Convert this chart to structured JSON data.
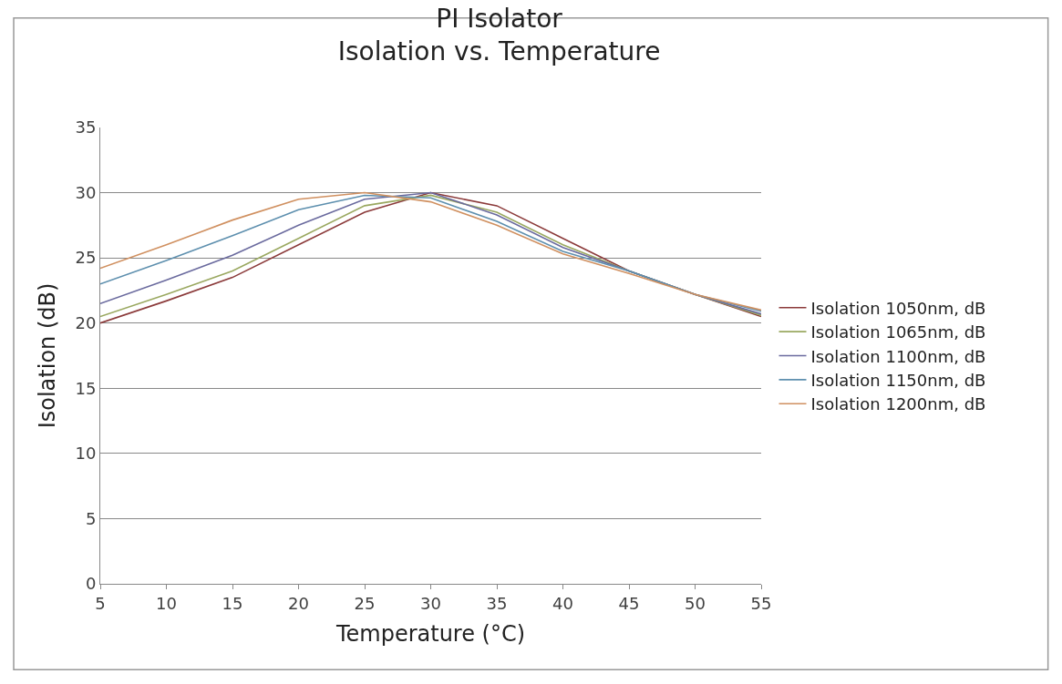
{
  "chart_data": {
    "type": "line",
    "title": "PI Isolator",
    "subtitle": "Isolation vs. Temperature",
    "xlabel": "Temperature (°C)",
    "ylabel": "Isolation (dB)",
    "x": [
      5,
      10,
      15,
      20,
      25,
      30,
      35,
      40,
      45,
      50,
      55
    ],
    "series": [
      {
        "name": "Isolation 1050nm, dB",
        "color": "#8b3a3a",
        "values": [
          20,
          21.7,
          23.5,
          26,
          28.5,
          30,
          29,
          26.5,
          24,
          22.2,
          20.5
        ]
      },
      {
        "name": "Isolation 1065nm, dB",
        "color": "#9aa860",
        "values": [
          20.5,
          22.2,
          24,
          26.5,
          29,
          29.8,
          28.5,
          26,
          24,
          22.2,
          20.6
        ]
      },
      {
        "name": "Isolation 1100nm, dB",
        "color": "#6a6a9e",
        "values": [
          21.5,
          23.3,
          25.2,
          27.5,
          29.5,
          30,
          28.3,
          25.8,
          24,
          22.2,
          20.7
        ]
      },
      {
        "name": "Isolation 1150nm, dB",
        "color": "#5d8fae",
        "values": [
          23,
          24.8,
          26.7,
          28.7,
          29.8,
          29.6,
          27.8,
          25.5,
          24,
          22.2,
          20.9
        ]
      },
      {
        "name": "Isolation 1200nm, dB",
        "color": "#d09060",
        "values": [
          24.2,
          26,
          27.9,
          29.5,
          30,
          29.3,
          27.5,
          25.3,
          23.8,
          22.2,
          21
        ]
      }
    ],
    "xlim": [
      5,
      55
    ],
    "xticks": [
      5,
      10,
      15,
      20,
      25,
      30,
      35,
      40,
      45,
      50,
      55
    ],
    "ylim": [
      0,
      35
    ],
    "yticks": [
      0,
      5,
      10,
      15,
      20,
      25,
      30,
      35
    ],
    "grid": "y",
    "legend": "right",
    "marker": "none",
    "line_style": "solid"
  }
}
